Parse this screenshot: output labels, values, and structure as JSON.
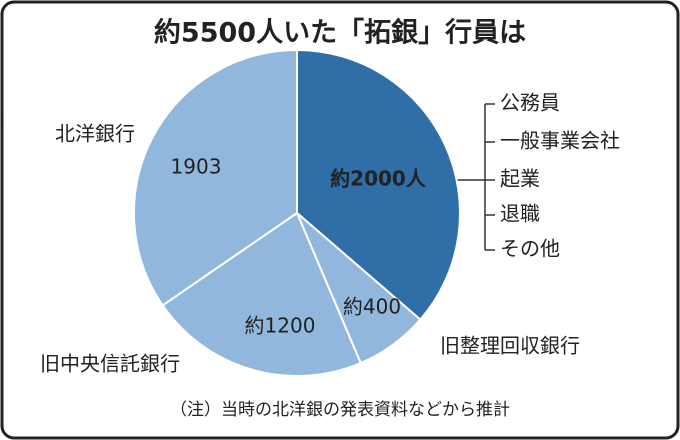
{
  "chart_data": {
    "type": "pie",
    "title": "約5500人いた「拓銀」行員は",
    "categories": [
      null,
      "旧整理回収銀行",
      "旧中央信託銀行",
      "北洋銀行"
    ],
    "values": [
      2000,
      400,
      1200,
      1903
    ],
    "value_labels": [
      "約2000人",
      "約400",
      "約1200",
      "1903"
    ],
    "colors": [
      "#2f6ea6",
      "#92b7dc",
      "#92b7dc",
      "#92b7dc"
    ],
    "breakdown": [
      "公務員",
      "一般事業会社",
      "起業",
      "退職",
      "その他"
    ],
    "note": "（注）当時の北洋銀の発表資料などから推計"
  }
}
